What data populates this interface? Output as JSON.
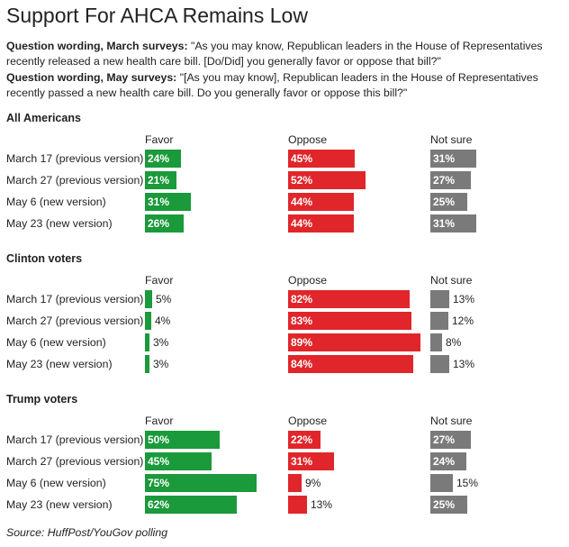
{
  "title": "Support For AHCA Remains Low",
  "questions": [
    {
      "label": "Question wording, March surveys:",
      "text": " \"As you may know, Republican leaders in the House of Representatives recently released a new health care bill. [Do/Did] you generally favor or oppose that bill?\""
    },
    {
      "label": "Question wording, May surveys:",
      "text": " \"[As you may know], Republican leaders in the House of Representatives recently passed a new health care bill. Do you generally favor or oppose this bill?\""
    }
  ],
  "columns": [
    "Favor",
    "Oppose",
    "Not sure"
  ],
  "colors": {
    "favor": "#1a9a3a",
    "oppose": "#e0262a",
    "not_sure": "#7a7a7a"
  },
  "source": "Source: HuffPost/YouGov polling",
  "chart_data": {
    "type": "bar",
    "orientation": "horizontal",
    "unit": "%",
    "categories": [
      "March 17 (previous version)",
      "March 27 (previous version)",
      "May 6 (new version)",
      "May 23 (new version)"
    ],
    "groups": [
      {
        "name": "All Americans",
        "series": [
          {
            "name": "Favor",
            "values": [
              24,
              21,
              31,
              26
            ]
          },
          {
            "name": "Oppose",
            "values": [
              45,
              52,
              44,
              44
            ]
          },
          {
            "name": "Not sure",
            "values": [
              31,
              27,
              25,
              31
            ]
          }
        ]
      },
      {
        "name": "Clinton voters",
        "series": [
          {
            "name": "Favor",
            "values": [
              5,
              4,
              3,
              3
            ]
          },
          {
            "name": "Oppose",
            "values": [
              82,
              83,
              89,
              84
            ]
          },
          {
            "name": "Not sure",
            "values": [
              13,
              12,
              8,
              13
            ]
          }
        ]
      },
      {
        "name": "Trump voters",
        "series": [
          {
            "name": "Favor",
            "values": [
              50,
              45,
              75,
              62
            ]
          },
          {
            "name": "Oppose",
            "values": [
              22,
              31,
              9,
              13
            ]
          },
          {
            "name": "Not sure",
            "values": [
              27,
              24,
              15,
              25
            ]
          }
        ]
      }
    ]
  }
}
